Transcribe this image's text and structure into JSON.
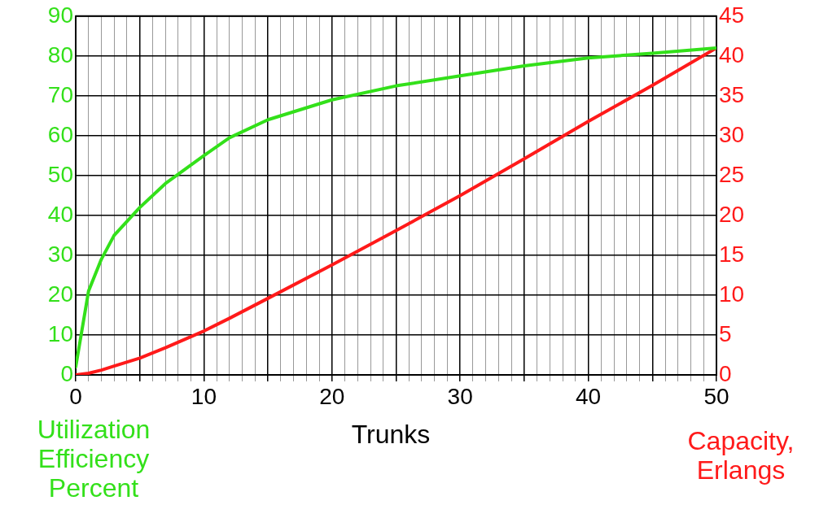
{
  "chart_data": {
    "type": "line",
    "xlabel": "Trunks",
    "ylabel": "Utilization Efficiency Percent",
    "y2label": "Capacity, Erlangs",
    "xlim": [
      0,
      50
    ],
    "xticks": [
      0,
      {
        "value": 1,
        "label": null
      },
      {
        "value": 2,
        "label": null
      },
      {
        "value": 3,
        "label": null
      },
      {
        "value": 4,
        "label": null
      },
      {
        "value": 5,
        "label": null
      },
      {
        "value": 6,
        "label": null
      },
      {
        "value": 7,
        "label": null
      },
      {
        "value": 8,
        "label": null
      },
      {
        "value": 9,
        "label": null
      },
      10,
      {
        "value": 11,
        "label": null
      },
      {
        "value": 12,
        "label": null
      },
      {
        "value": 13,
        "label": null
      },
      {
        "value": 14,
        "label": null
      },
      {
        "value": 15,
        "label": null
      },
      {
        "value": 16,
        "label": null
      },
      {
        "value": 17,
        "label": null
      },
      {
        "value": 18,
        "label": null
      },
      {
        "value": 19,
        "label": null
      },
      20,
      {
        "value": 21,
        "label": null
      },
      {
        "value": 22,
        "label": null
      },
      {
        "value": 23,
        "label": null
      },
      {
        "value": 24,
        "label": null
      },
      {
        "value": 25,
        "label": null
      },
      {
        "value": 26,
        "label": null
      },
      {
        "value": 27,
        "label": null
      },
      {
        "value": 28,
        "label": null
      },
      {
        "value": 29,
        "label": null
      },
      30,
      {
        "value": 31,
        "label": null
      },
      {
        "value": 32,
        "label": null
      },
      {
        "value": 33,
        "label": null
      },
      {
        "value": 34,
        "label": null
      },
      {
        "value": 35,
        "label": null
      },
      {
        "value": 36,
        "label": null
      },
      {
        "value": 37,
        "label": null
      },
      {
        "value": 38,
        "label": null
      },
      {
        "value": 39,
        "label": null
      },
      40,
      {
        "value": 41,
        "label": null
      },
      {
        "value": 42,
        "label": null
      },
      {
        "value": 43,
        "label": null
      },
      {
        "value": 44,
        "label": null
      },
      {
        "value": 45,
        "label": null
      },
      {
        "value": 46,
        "label": null
      },
      {
        "value": 47,
        "label": null
      },
      {
        "value": 48,
        "label": null
      },
      {
        "value": 49,
        "label": null
      },
      50
    ],
    "ylim": [
      0,
      90
    ],
    "yticks": [
      0,
      10,
      20,
      30,
      40,
      50,
      60,
      70,
      80,
      90
    ],
    "y2lim": [
      0,
      45
    ],
    "y2ticks": [
      0,
      5,
      10,
      15,
      20,
      25,
      30,
      35,
      40,
      45
    ],
    "grid": true,
    "legend": false,
    "marker": "none",
    "line_style": "solid",
    "x": [
      0,
      1,
      2,
      3,
      5,
      7,
      10,
      12,
      15,
      20,
      25,
      30,
      35,
      40,
      45,
      50
    ],
    "series": [
      {
        "color": "#33e01a",
        "values": [
          2,
          21,
          29,
          35,
          42,
          48,
          55,
          59.5,
          64,
          69,
          72.5,
          75,
          77.5,
          79.5,
          80.7,
          82
        ]
      },
      {
        "color": "#ff1a1a",
        "axis": "y2",
        "values": [
          0,
          0.2,
          0.6,
          1.1,
          2.1,
          3.4,
          5.5,
          7.1,
          9.6,
          13.8,
          18.1,
          22.5,
          27.1,
          31.8,
          36.3,
          41
        ]
      }
    ]
  }
}
